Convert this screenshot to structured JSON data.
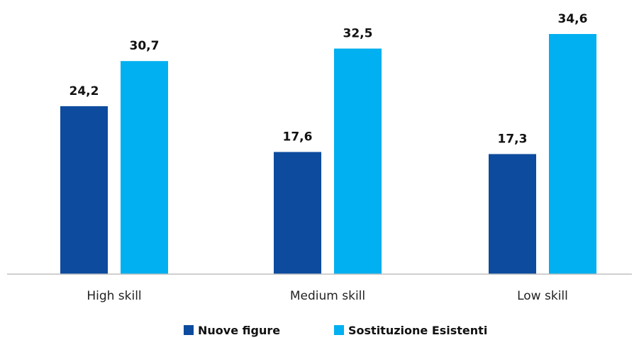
{
  "chart_data": {
    "type": "bar",
    "categories": [
      "High skill",
      "Medium skill",
      "Low skill"
    ],
    "series": [
      {
        "name": "Nuove figure",
        "values": [
          24.2,
          17.6,
          17.3
        ],
        "color": "#0D4B9E"
      },
      {
        "name": "Sostituzione Esistenti",
        "values": [
          30.7,
          32.5,
          34.6
        ],
        "color": "#00B0F0"
      }
    ],
    "value_labels": [
      [
        "24,2",
        "17,6",
        "17,3"
      ],
      [
        "30,7",
        "32,5",
        "34,6"
      ]
    ],
    "ylim": [
      0,
      35
    ],
    "grid": false,
    "legend_position": "bottom",
    "baseline_color": "#BFBFBF"
  }
}
